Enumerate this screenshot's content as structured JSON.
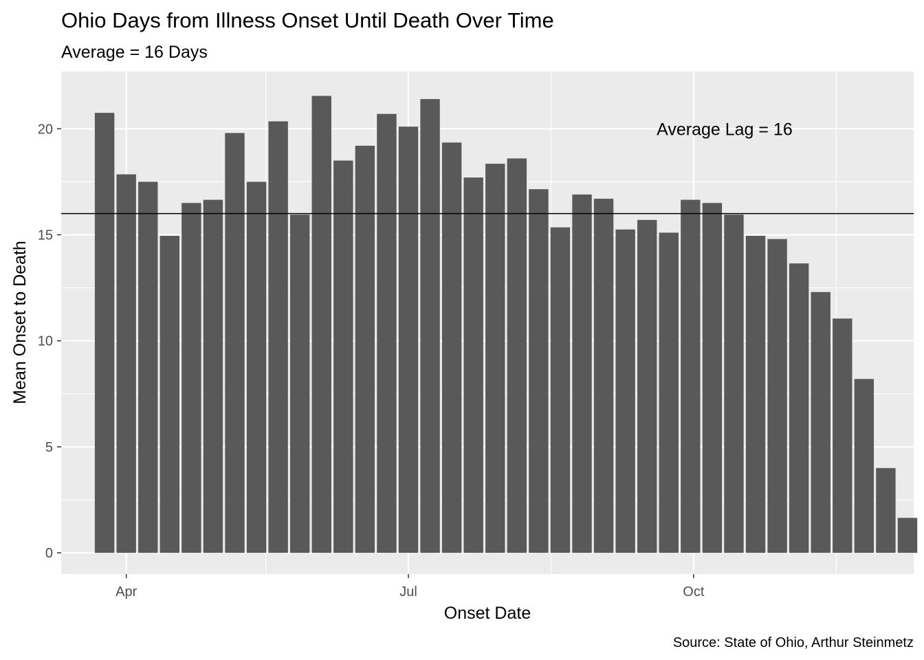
{
  "chart_data": {
    "type": "bar",
    "title": "Ohio Days from Illness Onset Until Death Over Time",
    "subtitle": "Average = 16 Days",
    "xlabel": "Onset Date",
    "ylabel": "Mean Onset to Death",
    "caption": "Source: State of Ohio, Arthur Steinmetz",
    "annotation": {
      "text": "Average Lag = 16",
      "x": "2020-10-11",
      "y": 20
    },
    "reference_line": {
      "y": 16
    },
    "ylim": [
      -1.0,
      22.7
    ],
    "xlim": [
      "2020-03-11",
      "2020-12-11"
    ],
    "y_ticks": [
      0,
      5,
      10,
      15,
      20
    ],
    "x_ticks": [
      {
        "date": "2020-04-01",
        "label": "Apr"
      },
      {
        "date": "2020-07-01",
        "label": "Jul"
      },
      {
        "date": "2020-10-01",
        "label": "Oct"
      }
    ],
    "x_minor_ticks": [
      "2020-05-16",
      "2020-08-16",
      "2020-11-16"
    ],
    "y_minor_ticks": [
      2.5,
      7.5,
      12.5,
      17.5
    ],
    "bar_color": "#595959",
    "panel_color": "#ebebeb",
    "grid": true,
    "bar_width_days": 6.3,
    "x": [
      "2020-03-25",
      "2020-04-01",
      "2020-04-08",
      "2020-04-15",
      "2020-04-22",
      "2020-04-29",
      "2020-05-06",
      "2020-05-13",
      "2020-05-20",
      "2020-05-27",
      "2020-06-03",
      "2020-06-10",
      "2020-06-17",
      "2020-06-24",
      "2020-07-01",
      "2020-07-08",
      "2020-07-15",
      "2020-07-22",
      "2020-07-29",
      "2020-08-05",
      "2020-08-12",
      "2020-08-19",
      "2020-08-26",
      "2020-09-02",
      "2020-09-09",
      "2020-09-16",
      "2020-09-23",
      "2020-09-30",
      "2020-10-07",
      "2020-10-14",
      "2020-10-21",
      "2020-10-28",
      "2020-11-04",
      "2020-11-11",
      "2020-11-18",
      "2020-11-25",
      "2020-12-02",
      "2020-12-09"
    ],
    "values": [
      20.75,
      17.85,
      17.5,
      14.95,
      16.5,
      16.65,
      19.8,
      17.5,
      20.35,
      15.95,
      21.55,
      18.5,
      19.2,
      20.7,
      20.1,
      21.4,
      19.35,
      17.7,
      18.35,
      18.6,
      17.15,
      15.35,
      16.9,
      16.7,
      15.25,
      15.7,
      15.1,
      16.65,
      16.5,
      15.95,
      14.95,
      14.8,
      13.65,
      12.3,
      11.05,
      8.2,
      4.0,
      1.65
    ]
  }
}
